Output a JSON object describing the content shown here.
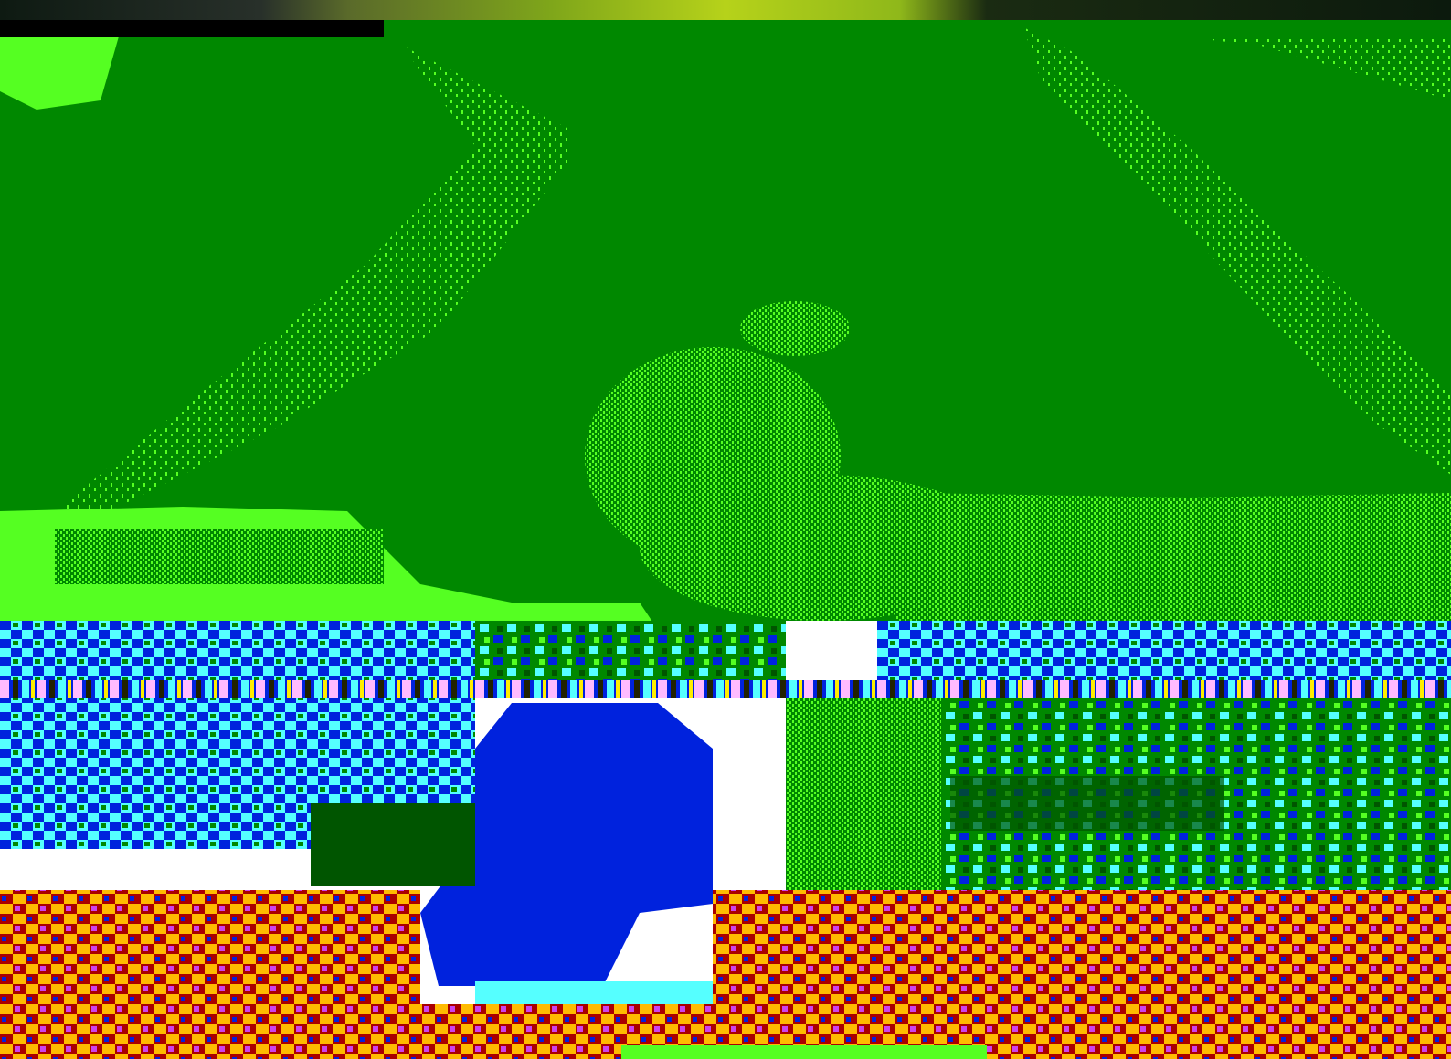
{
  "scene": {
    "title": "",
    "palette": {
      "grass": "#008800",
      "grass_light": "#55ff22",
      "sky_blue": "#0022dd",
      "sky_cyan": "#55ffff",
      "earth_red": "#aa0000",
      "earth_orange": "#ffbb00",
      "magenta": "#cc44ee",
      "pink": "#ffbbff",
      "dark_green": "#005500"
    }
  }
}
